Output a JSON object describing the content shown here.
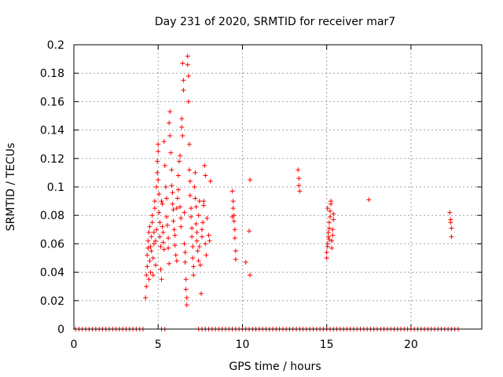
{
  "chart_data": {
    "type": "scatter",
    "title": "Day 231 of 2020, SRMTID for receiver mar7",
    "xlabel": "GPS time / hours",
    "ylabel": "SRMTID / TECUs",
    "xlim": [
      0,
      24.2
    ],
    "ylim": [
      0,
      0.2
    ],
    "x_ticks": [
      0,
      5,
      10,
      15,
      20
    ],
    "y_ticks": [
      0,
      0.02,
      0.04,
      0.06,
      0.08,
      0.1,
      0.12,
      0.14,
      0.16,
      0.18,
      0.2
    ],
    "x_tick_labels": [
      "0",
      "5",
      "10",
      "15",
      "20"
    ],
    "y_tick_labels": [
      "0",
      "0.02",
      "0.04",
      "0.06",
      "0.08",
      "0.1",
      "0.12",
      "0.14",
      "0.16",
      "0.18",
      "0.2"
    ],
    "grid": true,
    "marker": "+",
    "color": "#ff0000",
    "series": [
      {
        "name": "SRMTID",
        "points": [
          [
            4.25,
            0.022
          ],
          [
            4.3,
            0.03
          ],
          [
            4.3,
            0.038
          ],
          [
            4.35,
            0.044
          ],
          [
            4.35,
            0.052
          ],
          [
            4.4,
            0.057
          ],
          [
            4.4,
            0.062
          ],
          [
            4.45,
            0.068
          ],
          [
            4.45,
            0.035
          ],
          [
            4.5,
            0.048
          ],
          [
            4.5,
            0.072
          ],
          [
            4.55,
            0.04
          ],
          [
            4.55,
            0.058
          ],
          [
            4.6,
            0.065
          ],
          [
            4.6,
            0.055
          ],
          [
            4.65,
            0.075
          ],
          [
            4.65,
            0.08
          ],
          [
            4.7,
            0.038
          ],
          [
            4.7,
            0.05
          ],
          [
            4.75,
            0.06
          ],
          [
            4.75,
            0.068
          ],
          [
            4.8,
            0.085
          ],
          [
            4.8,
            0.09
          ],
          [
            4.85,
            0.045
          ],
          [
            4.85,
            0.062
          ],
          [
            4.9,
            0.07
          ],
          [
            4.9,
            0.1
          ],
          [
            4.95,
            0.11
          ],
          [
            4.95,
            0.118
          ],
          [
            5.0,
            0.125
          ],
          [
            5.0,
            0.13
          ],
          [
            5.0,
            0.105
          ],
          [
            5.05,
            0.095
          ],
          [
            5.05,
            0.082
          ],
          [
            5.1,
            0.075
          ],
          [
            5.1,
            0.065
          ],
          [
            5.15,
            0.058
          ],
          [
            5.15,
            0.042
          ],
          [
            5.2,
            0.035
          ],
          [
            5.2,
            0.09
          ],
          [
            5.25,
            0.088
          ],
          [
            5.25,
            0.072
          ],
          [
            5.3,
            0.068
          ],
          [
            5.3,
            0.061
          ],
          [
            5.35,
            0.056
          ],
          [
            5.35,
            0.132
          ],
          [
            5.4,
            0.115
          ],
          [
            5.45,
            0.1
          ],
          [
            5.5,
            0.092
          ],
          [
            5.5,
            0.079
          ],
          [
            5.55,
            0.073
          ],
          [
            5.6,
            0.064
          ],
          [
            5.6,
            0.057
          ],
          [
            5.65,
            0.046
          ],
          [
            5.65,
            0.145
          ],
          [
            5.7,
            0.153
          ],
          [
            5.7,
            0.136
          ],
          [
            5.75,
            0.124
          ],
          [
            5.8,
            0.112
          ],
          [
            5.8,
            0.101
          ],
          [
            5.85,
            0.096
          ],
          [
            5.85,
            0.088
          ],
          [
            5.9,
            0.084
          ],
          [
            5.9,
            0.076
          ],
          [
            5.95,
            0.07
          ],
          [
            6.0,
            0.066
          ],
          [
            6.0,
            0.059
          ],
          [
            6.05,
            0.052
          ],
          [
            6.1,
            0.048
          ],
          [
            6.1,
            0.085
          ],
          [
            6.15,
            0.092
          ],
          [
            6.2,
            0.098
          ],
          [
            6.2,
            0.108
          ],
          [
            6.25,
            0.118
          ],
          [
            6.3,
            0.122
          ],
          [
            6.3,
            0.086
          ],
          [
            6.35,
            0.078
          ],
          [
            6.35,
            0.072
          ],
          [
            6.4,
            0.142
          ],
          [
            6.4,
            0.148
          ],
          [
            6.45,
            0.136
          ],
          [
            6.45,
            0.187
          ],
          [
            6.5,
            0.175
          ],
          [
            6.5,
            0.168
          ],
          [
            6.55,
            0.082
          ],
          [
            6.55,
            0.06
          ],
          [
            6.6,
            0.054
          ],
          [
            6.6,
            0.047
          ],
          [
            6.65,
            0.035
          ],
          [
            6.65,
            0.028
          ],
          [
            6.7,
            0.022
          ],
          [
            6.7,
            0.017
          ],
          [
            6.75,
            0.186
          ],
          [
            6.75,
            0.192
          ],
          [
            6.8,
            0.178
          ],
          [
            6.8,
            0.16
          ],
          [
            6.85,
            0.13
          ],
          [
            6.85,
            0.112
          ],
          [
            6.9,
            0.104
          ],
          [
            6.9,
            0.094
          ],
          [
            6.95,
            0.085
          ],
          [
            6.95,
            0.079
          ],
          [
            7.0,
            0.071
          ],
          [
            7.0,
            0.065
          ],
          [
            7.05,
            0.058
          ],
          [
            7.05,
            0.05
          ],
          [
            7.1,
            0.044
          ],
          [
            7.1,
            0.038
          ],
          [
            7.15,
            0.1
          ],
          [
            7.2,
            0.11
          ],
          [
            7.2,
            0.092
          ],
          [
            7.25,
            0.086
          ],
          [
            7.25,
            0.074
          ],
          [
            7.3,
            0.068
          ],
          [
            7.3,
            0.062
          ],
          [
            7.35,
            0.055
          ],
          [
            7.4,
            0.048
          ],
          [
            7.4,
            0.08
          ],
          [
            7.45,
            0.09
          ],
          [
            7.45,
            0.058
          ],
          [
            7.5,
            0.045
          ],
          [
            7.55,
            0.025
          ],
          [
            7.6,
            0.065
          ],
          [
            7.6,
            0.07
          ],
          [
            7.65,
            0.075
          ],
          [
            7.7,
            0.087
          ],
          [
            7.7,
            0.09
          ],
          [
            7.75,
            0.115
          ],
          [
            7.8,
            0.108
          ],
          [
            7.8,
            0.06
          ],
          [
            7.85,
            0.052
          ],
          [
            7.9,
            0.078
          ],
          [
            8.0,
            0.066
          ],
          [
            8.05,
            0.062
          ],
          [
            8.1,
            0.104
          ],
          [
            9.4,
            0.097
          ],
          [
            9.45,
            0.09
          ],
          [
            9.45,
            0.085
          ],
          [
            9.5,
            0.08
          ],
          [
            9.5,
            0.076
          ],
          [
            9.55,
            0.07
          ],
          [
            9.55,
            0.064
          ],
          [
            9.6,
            0.055
          ],
          [
            9.6,
            0.049
          ],
          [
            9.4,
            0.079
          ],
          [
            10.2,
            0.047
          ],
          [
            10.4,
            0.069
          ],
          [
            10.45,
            0.105
          ],
          [
            10.45,
            0.038
          ],
          [
            13.3,
            0.112
          ],
          [
            13.35,
            0.106
          ],
          [
            13.35,
            0.101
          ],
          [
            13.4,
            0.097
          ],
          [
            15.0,
            0.05
          ],
          [
            15.0,
            0.054
          ],
          [
            15.05,
            0.058
          ],
          [
            15.05,
            0.06
          ],
          [
            15.1,
            0.065
          ],
          [
            15.1,
            0.068
          ],
          [
            15.15,
            0.071
          ],
          [
            15.15,
            0.075
          ],
          [
            15.2,
            0.079
          ],
          [
            15.2,
            0.083
          ],
          [
            15.25,
            0.088
          ],
          [
            15.25,
            0.09
          ],
          [
            15.3,
            0.057
          ],
          [
            15.3,
            0.062
          ],
          [
            15.35,
            0.066
          ],
          [
            15.35,
            0.07
          ],
          [
            15.4,
            0.077
          ],
          [
            15.4,
            0.081
          ],
          [
            15.05,
            0.085
          ],
          [
            15.15,
            0.063
          ],
          [
            17.5,
            0.091
          ],
          [
            22.3,
            0.082
          ],
          [
            22.35,
            0.077
          ],
          [
            22.35,
            0.075
          ],
          [
            22.4,
            0.071
          ],
          [
            22.4,
            0.065
          ],
          [
            0.1,
            0
          ],
          [
            0.3,
            0
          ],
          [
            0.5,
            0
          ],
          [
            0.7,
            0
          ],
          [
            0.9,
            0
          ],
          [
            1.1,
            0
          ],
          [
            1.3,
            0
          ],
          [
            1.5,
            0
          ],
          [
            1.7,
            0
          ],
          [
            1.9,
            0
          ],
          [
            2.1,
            0
          ],
          [
            2.3,
            0
          ],
          [
            2.5,
            0
          ],
          [
            2.7,
            0
          ],
          [
            2.9,
            0
          ],
          [
            3.1,
            0
          ],
          [
            3.3,
            0
          ],
          [
            3.5,
            0
          ],
          [
            3.7,
            0
          ],
          [
            3.9,
            0
          ],
          [
            4.1,
            0
          ],
          [
            5.2,
            0
          ],
          [
            5.4,
            0
          ],
          [
            7.4,
            0
          ],
          [
            7.6,
            0
          ],
          [
            7.8,
            0
          ],
          [
            8.0,
            0
          ],
          [
            8.2,
            0
          ],
          [
            8.4,
            0
          ],
          [
            8.6,
            0
          ],
          [
            8.8,
            0
          ],
          [
            9.0,
            0
          ],
          [
            9.2,
            0
          ],
          [
            9.4,
            0
          ],
          [
            9.6,
            0
          ],
          [
            9.8,
            0
          ],
          [
            10.0,
            0
          ],
          [
            10.2,
            0
          ],
          [
            10.4,
            0
          ],
          [
            10.6,
            0
          ],
          [
            10.8,
            0
          ],
          [
            11.0,
            0
          ],
          [
            11.2,
            0
          ],
          [
            11.4,
            0
          ],
          [
            11.6,
            0
          ],
          [
            11.8,
            0
          ],
          [
            12.0,
            0
          ],
          [
            12.2,
            0
          ],
          [
            12.4,
            0
          ],
          [
            12.6,
            0
          ],
          [
            12.8,
            0
          ],
          [
            13.0,
            0
          ],
          [
            13.2,
            0
          ],
          [
            13.4,
            0
          ],
          [
            13.6,
            0
          ],
          [
            13.8,
            0
          ],
          [
            14.0,
            0
          ],
          [
            14.2,
            0
          ],
          [
            14.4,
            0
          ],
          [
            14.6,
            0
          ],
          [
            14.8,
            0
          ],
          [
            15.0,
            0
          ],
          [
            15.2,
            0
          ],
          [
            15.4,
            0
          ],
          [
            15.6,
            0
          ],
          [
            15.8,
            0
          ],
          [
            16.0,
            0
          ],
          [
            16.2,
            0
          ],
          [
            16.4,
            0
          ],
          [
            16.6,
            0
          ],
          [
            16.8,
            0
          ],
          [
            17.0,
            0
          ],
          [
            17.2,
            0
          ],
          [
            17.4,
            0
          ],
          [
            17.6,
            0
          ],
          [
            17.8,
            0
          ],
          [
            18.0,
            0
          ],
          [
            18.2,
            0
          ],
          [
            18.4,
            0
          ],
          [
            18.6,
            0
          ],
          [
            18.8,
            0
          ],
          [
            19.0,
            0
          ],
          [
            19.2,
            0
          ],
          [
            19.4,
            0
          ],
          [
            19.6,
            0
          ],
          [
            19.8,
            0
          ],
          [
            20.0,
            0
          ],
          [
            20.2,
            0
          ],
          [
            20.4,
            0
          ],
          [
            20.6,
            0
          ],
          [
            20.8,
            0
          ],
          [
            21.0,
            0
          ],
          [
            21.2,
            0
          ],
          [
            21.4,
            0
          ],
          [
            21.6,
            0
          ],
          [
            21.8,
            0
          ],
          [
            22.0,
            0
          ],
          [
            22.2,
            0
          ],
          [
            22.4,
            0
          ],
          [
            22.6,
            0
          ],
          [
            22.8,
            0
          ]
        ]
      }
    ]
  }
}
